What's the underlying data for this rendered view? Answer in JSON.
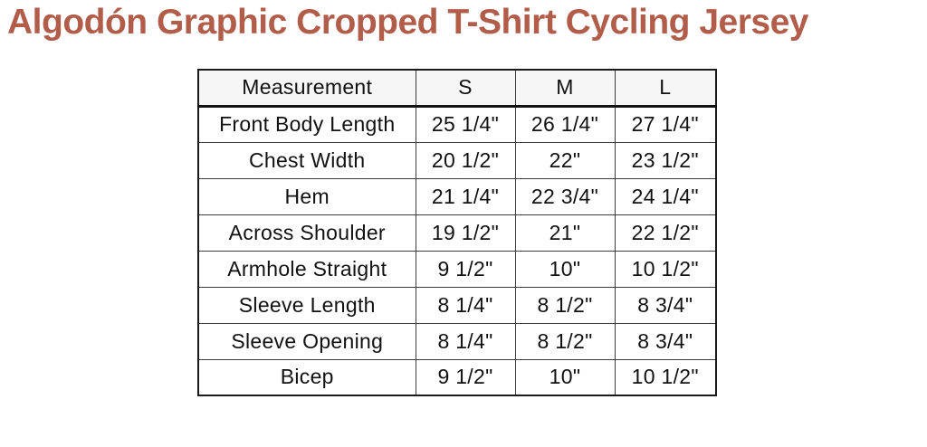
{
  "page": {
    "title": "Algodón Graphic Cropped T-Shirt Cycling Jersey",
    "title_color": "#b25c4a"
  },
  "table": {
    "columns": [
      "Measurement",
      "S",
      "M",
      "L"
    ],
    "rows": [
      [
        "Front Body Length",
        "25 1/4\"",
        "26 1/4\"",
        "27 1/4\""
      ],
      [
        "Chest Width",
        "20 1/2\"",
        "22\"",
        "23 1/2\""
      ],
      [
        "Hem",
        "21 1/4\"",
        "22 3/4\"",
        "24 1/4\""
      ],
      [
        "Across Shoulder",
        "19 1/2\"",
        "21\"",
        "22 1/2\""
      ],
      [
        "Armhole Straight",
        "9 1/2\"",
        "10\"",
        "10 1/2\""
      ],
      [
        "Sleeve Length",
        "8 1/4\"",
        "8 1/2\"",
        "8 3/4\""
      ],
      [
        "Sleeve Opening",
        "8 1/4\"",
        "8 1/2\"",
        "8 3/4\""
      ],
      [
        "Bicep",
        "9 1/2\"",
        "10\"",
        "10 1/2\""
      ]
    ]
  }
}
